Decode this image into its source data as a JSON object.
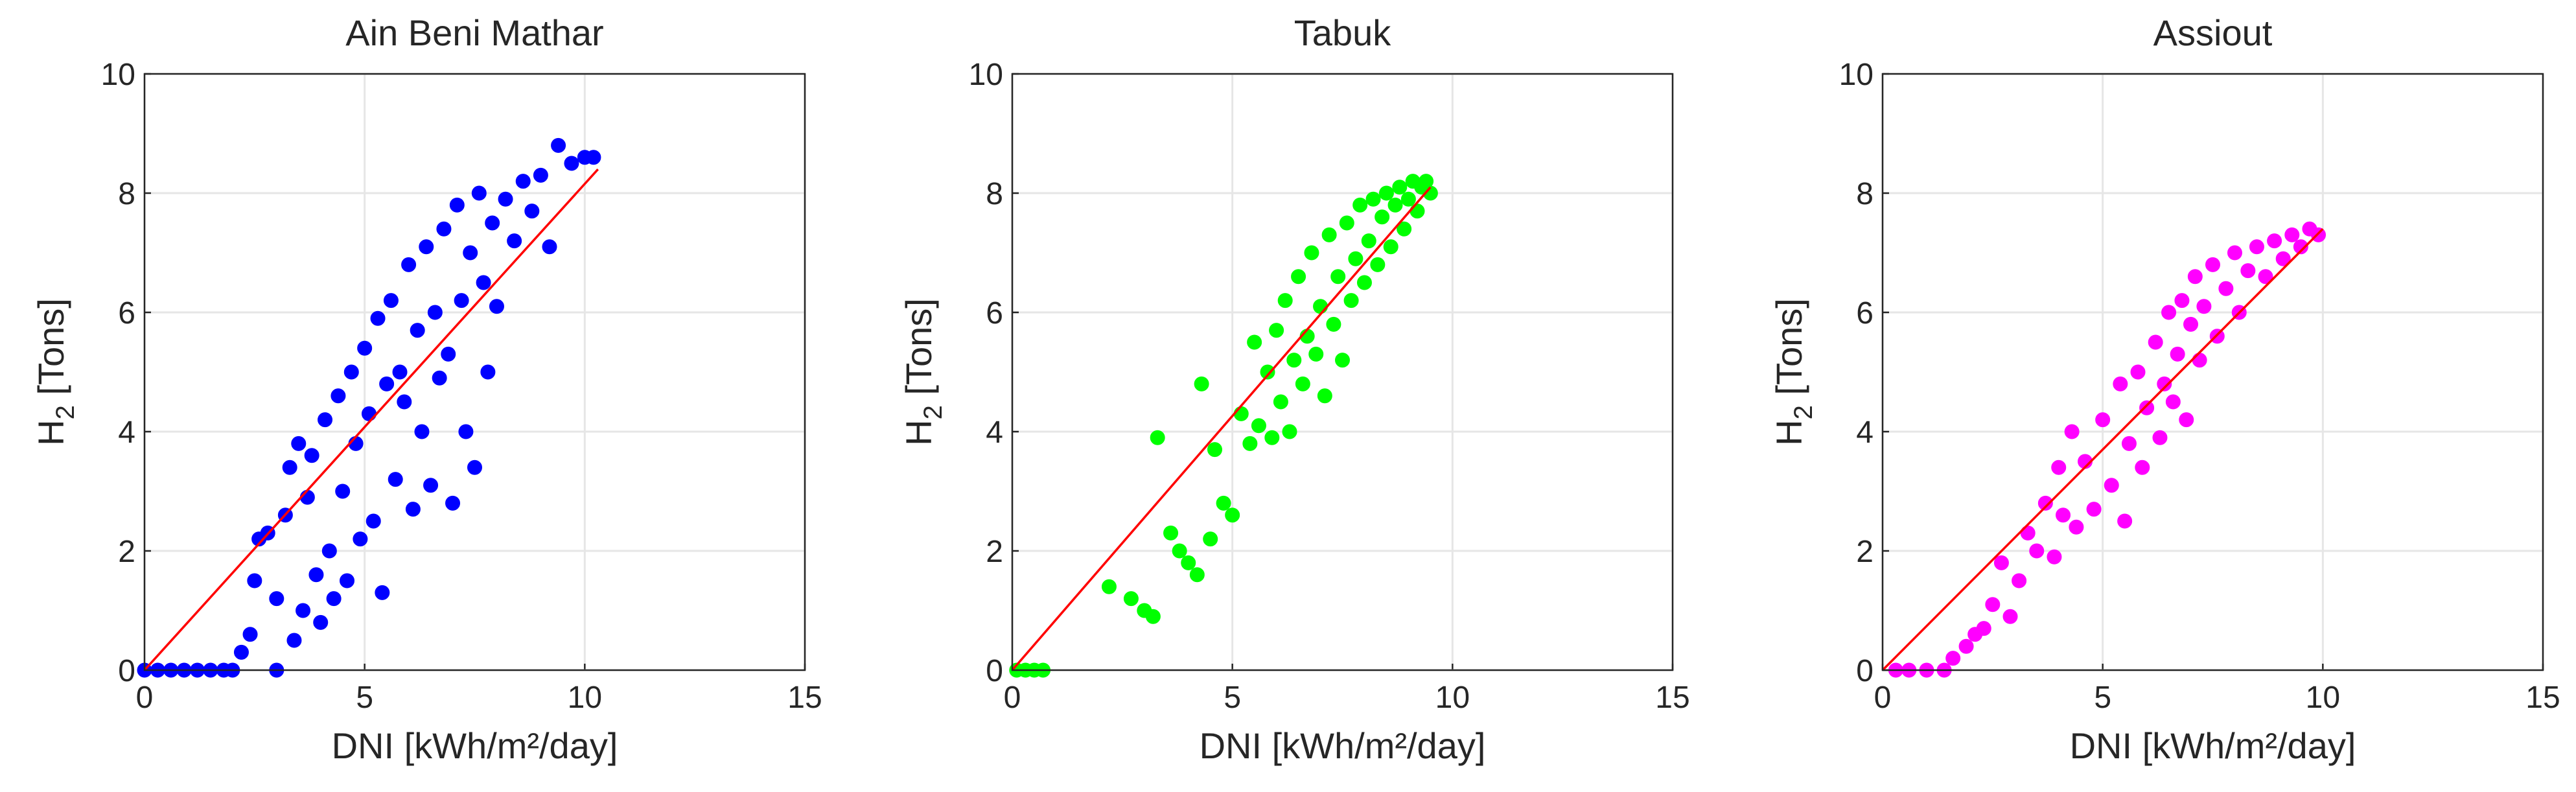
{
  "chart_data": [
    {
      "type": "scatter",
      "title": "Ain Beni Mathar",
      "xlabel": "DNI [kWh/m²/day]",
      "ylabel": [
        "H",
        "2",
        " [Tons]"
      ],
      "color": "#0000ff",
      "xlim": [
        0,
        15
      ],
      "ylim": [
        0,
        10
      ],
      "xticks": [
        0,
        5,
        10,
        15
      ],
      "yticks": [
        0,
        2,
        4,
        6,
        8,
        10
      ],
      "grid": true,
      "x": [
        0,
        0.3,
        0.6,
        0.9,
        1.2,
        1.5,
        1.8,
        2.0,
        3.0,
        2.2,
        2.4,
        2.5,
        2.6,
        2.8,
        3.0,
        3.2,
        3.3,
        3.4,
        3.5,
        3.6,
        3.7,
        3.8,
        3.9,
        4.0,
        4.1,
        4.2,
        4.3,
        4.4,
        4.5,
        4.6,
        4.7,
        4.8,
        4.9,
        5.0,
        5.1,
        5.2,
        5.3,
        5.4,
        5.5,
        5.6,
        5.7,
        5.8,
        5.9,
        6.0,
        6.1,
        6.2,
        6.3,
        6.4,
        6.5,
        6.6,
        6.7,
        6.8,
        6.9,
        7.0,
        7.1,
        7.2,
        7.3,
        7.4,
        7.5,
        7.6,
        7.7,
        7.8,
        7.9,
        8.0,
        8.2,
        8.4,
        8.6,
        8.8,
        9.0,
        9.2,
        9.4,
        9.7,
        10.0,
        10.2
      ],
      "values": [
        0,
        0,
        0,
        0,
        0,
        0,
        0,
        0,
        0,
        0.3,
        0.6,
        1.5,
        2.2,
        2.3,
        1.2,
        2.6,
        3.4,
        0.5,
        3.8,
        1.0,
        2.9,
        3.6,
        1.6,
        0.8,
        4.2,
        2.0,
        1.2,
        4.6,
        3.0,
        1.5,
        5.0,
        3.8,
        2.2,
        5.4,
        4.3,
        2.5,
        5.9,
        1.3,
        4.8,
        6.2,
        3.2,
        5.0,
        4.5,
        6.8,
        2.7,
        5.7,
        4.0,
        7.1,
        3.1,
        6.0,
        4.9,
        7.4,
        5.3,
        2.8,
        7.8,
        6.2,
        4.0,
        7.0,
        3.4,
        8.0,
        6.5,
        5.0,
        7.5,
        6.1,
        7.9,
        7.2,
        8.2,
        7.7,
        8.3,
        7.1,
        8.8,
        8.5,
        8.6,
        8.6
      ],
      "fit_line": {
        "x": [
          0,
          10.3
        ],
        "y": [
          0,
          8.4
        ],
        "color": "#ff0000"
      }
    },
    {
      "type": "scatter",
      "title": "Tabuk",
      "xlabel": "DNI [kWh/m²/day]",
      "ylabel": [
        "H",
        "2",
        " [Tons]"
      ],
      "color": "#00ff00",
      "xlim": [
        0,
        15
      ],
      "ylim": [
        0,
        10
      ],
      "xticks": [
        0,
        5,
        10,
        15
      ],
      "yticks": [
        0,
        2,
        4,
        6,
        8,
        10
      ],
      "grid": true,
      "x": [
        0.1,
        0.3,
        0.5,
        0.7,
        2.2,
        2.7,
        3.0,
        3.2,
        3.3,
        3.6,
        3.8,
        4.0,
        4.2,
        4.3,
        4.5,
        4.6,
        4.8,
        5.0,
        5.2,
        5.4,
        5.5,
        5.6,
        5.8,
        5.9,
        6.0,
        6.1,
        6.2,
        6.3,
        6.4,
        6.5,
        6.6,
        6.7,
        6.8,
        6.9,
        7.0,
        7.1,
        7.2,
        7.3,
        7.4,
        7.5,
        7.6,
        7.7,
        7.8,
        7.9,
        8.0,
        8.1,
        8.2,
        8.3,
        8.4,
        8.5,
        8.6,
        8.7,
        8.8,
        8.9,
        9.0,
        9.1,
        9.2,
        9.3,
        9.4,
        9.5
      ],
      "values": [
        0,
        0,
        0,
        0,
        1.4,
        1.2,
        1.0,
        0.9,
        3.9,
        2.3,
        2.0,
        1.8,
        1.6,
        4.8,
        2.2,
        3.7,
        2.8,
        2.6,
        4.3,
        3.8,
        5.5,
        4.1,
        5.0,
        3.9,
        5.7,
        4.5,
        6.2,
        4.0,
        5.2,
        6.6,
        4.8,
        5.6,
        7.0,
        5.3,
        6.1,
        4.6,
        7.3,
        5.8,
        6.6,
        5.2,
        7.5,
        6.2,
        6.9,
        7.8,
        6.5,
        7.2,
        7.9,
        6.8,
        7.6,
        8.0,
        7.1,
        7.8,
        8.1,
        7.4,
        7.9,
        8.2,
        7.7,
        8.1,
        8.2,
        8.0
      ],
      "fit_line": {
        "x": [
          0,
          9.5
        ],
        "y": [
          0,
          8.1
        ],
        "color": "#ff0000"
      }
    },
    {
      "type": "scatter",
      "title": "Assiout",
      "xlabel": "DNI [kWh/m²/day]",
      "ylabel": [
        "H",
        "2",
        " [Tons]"
      ],
      "color": "#ff00ff",
      "xlim": [
        0,
        15
      ],
      "ylim": [
        0,
        10
      ],
      "xticks": [
        0,
        5,
        10,
        15
      ],
      "yticks": [
        0,
        2,
        4,
        6,
        8,
        10
      ],
      "grid": true,
      "x": [
        0.3,
        0.6,
        1.0,
        1.4,
        1.6,
        1.9,
        2.1,
        2.3,
        2.5,
        2.7,
        2.9,
        3.1,
        3.3,
        3.5,
        3.7,
        3.9,
        4.0,
        4.1,
        4.3,
        4.4,
        4.6,
        4.8,
        5.0,
        5.2,
        5.4,
        5.5,
        5.6,
        5.8,
        5.9,
        6.0,
        6.2,
        6.3,
        6.4,
        6.5,
        6.6,
        6.7,
        6.8,
        6.9,
        7.0,
        7.1,
        7.2,
        7.3,
        7.5,
        7.6,
        7.8,
        8.0,
        8.1,
        8.3,
        8.5,
        8.7,
        8.9,
        9.1,
        9.3,
        9.5,
        9.7,
        9.9
      ],
      "values": [
        0,
        0,
        0,
        0,
        0.2,
        0.4,
        0.6,
        0.7,
        1.1,
        1.8,
        0.9,
        1.5,
        2.3,
        2.0,
        2.8,
        1.9,
        3.4,
        2.6,
        4.0,
        2.4,
        3.5,
        2.7,
        4.2,
        3.1,
        4.8,
        2.5,
        3.8,
        5.0,
        3.4,
        4.4,
        5.5,
        3.9,
        4.8,
        6.0,
        4.5,
        5.3,
        6.2,
        4.2,
        5.8,
        6.6,
        5.2,
        6.1,
        6.8,
        5.6,
        6.4,
        7.0,
        6.0,
        6.7,
        7.1,
        6.6,
        7.2,
        6.9,
        7.3,
        7.1,
        7.4,
        7.3
      ],
      "fit_line": {
        "x": [
          0,
          10
        ],
        "y": [
          0,
          7.4
        ],
        "color": "#ff0000"
      }
    }
  ]
}
